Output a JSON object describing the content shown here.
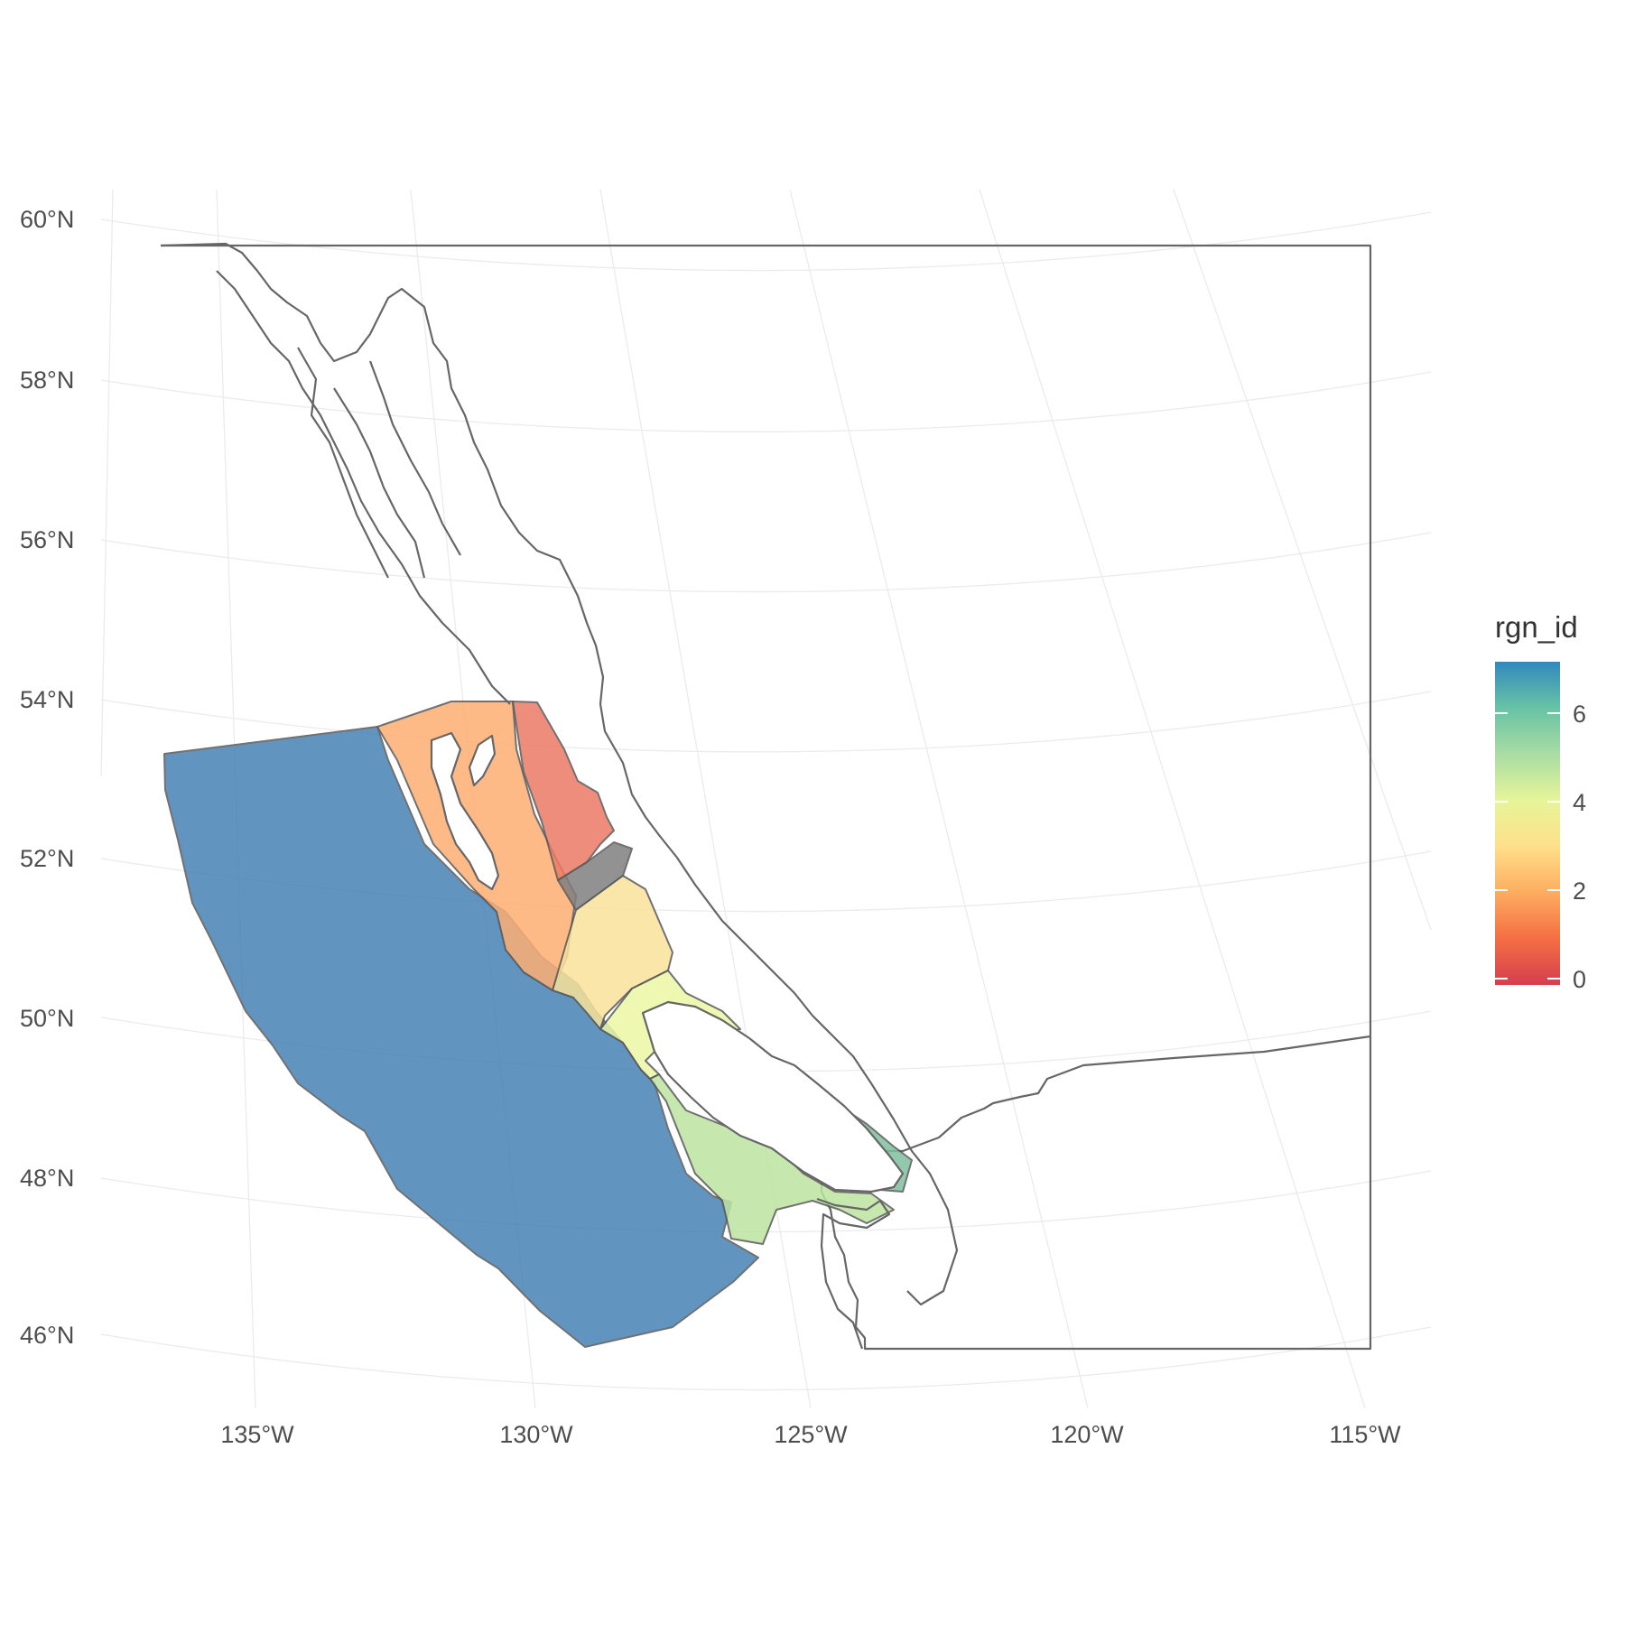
{
  "map": {
    "lat_labels": [
      "60°N",
      "58°N",
      "56°N",
      "54°N",
      "52°N",
      "50°N",
      "48°N",
      "46°N"
    ],
    "lon_labels": [
      "135°W",
      "130°W",
      "125°W",
      "120°W",
      "115°W"
    ]
  },
  "legend": {
    "title": "rgn_id",
    "ticks": [
      "0",
      "2",
      "4",
      "6"
    ],
    "colors": [
      "#d53e4f",
      "#f46d43",
      "#fdae61",
      "#fee08b",
      "#e6f598",
      "#abdda4",
      "#66c2a5",
      "#3288bd"
    ]
  },
  "regions": [
    {
      "rgn_id": 7,
      "color": "#4682b4"
    },
    {
      "rgn_id": 3,
      "color": "#fdae73"
    },
    {
      "rgn_id": 2,
      "color": "#ed7a66"
    },
    {
      "rgn_id": 0,
      "color": "#7f7f7f"
    },
    {
      "rgn_id": 4,
      "color": "#f9e29a"
    },
    {
      "rgn_id": 5,
      "color": "#ecf7a3"
    },
    {
      "rgn_id": 6,
      "color": "#bde5a0"
    },
    {
      "rgn_id": 6.5,
      "color": "#7fc0a0"
    }
  ]
}
